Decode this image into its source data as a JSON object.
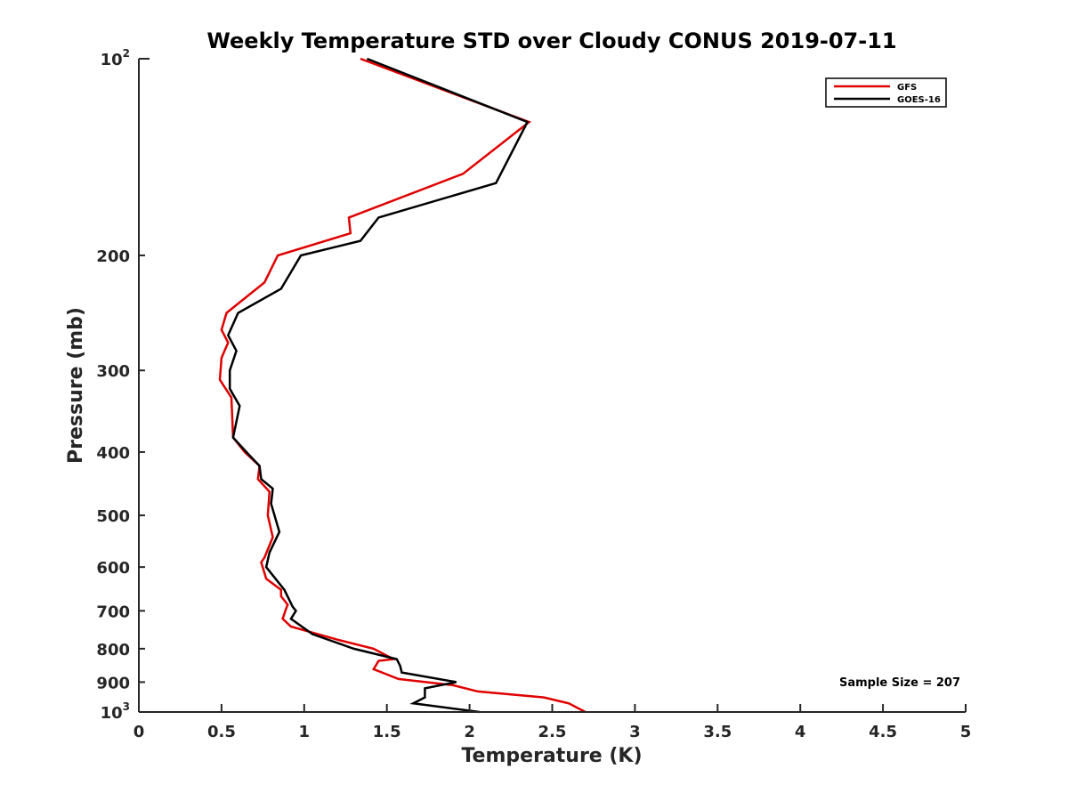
{
  "chart_data": {
    "type": "line",
    "title": "Weekly Temperature STD over Cloudy CONUS 2019-07-11",
    "xlabel": "Temperature (K)",
    "ylabel": "Pressure (mb)",
    "xlim": [
      0,
      5
    ],
    "ylim": [
      100,
      1000
    ],
    "yscale": "log",
    "y_reversed": true,
    "x_ticks": [
      0,
      0.5,
      1,
      1.5,
      2,
      2.5,
      3,
      3.5,
      4,
      4.5,
      5
    ],
    "x_tick_labels": [
      "0",
      "0.5",
      "1",
      "1.5",
      "2",
      "2.5",
      "3",
      "3.5",
      "4",
      "4.5",
      "5"
    ],
    "y_ticks": [
      100,
      200,
      300,
      400,
      500,
      600,
      700,
      800,
      900,
      1000
    ],
    "y_tick_labels": [
      {
        "base": "10",
        "exp": "2"
      },
      {
        "base": "200",
        "exp": ""
      },
      {
        "base": "300",
        "exp": ""
      },
      {
        "base": "400",
        "exp": ""
      },
      {
        "base": "500",
        "exp": ""
      },
      {
        "base": "600",
        "exp": ""
      },
      {
        "base": "700",
        "exp": ""
      },
      {
        "base": "800",
        "exp": ""
      },
      {
        "base": "900",
        "exp": ""
      },
      {
        "base": "10",
        "exp": "3"
      }
    ],
    "legend_position": "top-right",
    "annotation": "Sample Size = 207",
    "series": [
      {
        "name": "GFS",
        "color": "#e00000",
        "points": [
          [
            1.34,
            100
          ],
          [
            2.36,
            125
          ],
          [
            1.96,
            150
          ],
          [
            1.27,
            175
          ],
          [
            1.28,
            185
          ],
          [
            0.84,
            200
          ],
          [
            0.76,
            220
          ],
          [
            0.53,
            245
          ],
          [
            0.5,
            260
          ],
          [
            0.54,
            272
          ],
          [
            0.5,
            287
          ],
          [
            0.49,
            310
          ],
          [
            0.56,
            330
          ],
          [
            0.57,
            380
          ],
          [
            0.64,
            400
          ],
          [
            0.73,
            420
          ],
          [
            0.72,
            440
          ],
          [
            0.79,
            460
          ],
          [
            0.78,
            500
          ],
          [
            0.81,
            540
          ],
          [
            0.76,
            580
          ],
          [
            0.74,
            590
          ],
          [
            0.77,
            625
          ],
          [
            0.86,
            650
          ],
          [
            0.86,
            665
          ],
          [
            0.9,
            685
          ],
          [
            0.89,
            695
          ],
          [
            0.87,
            720
          ],
          [
            0.92,
            740
          ],
          [
            1.2,
            775
          ],
          [
            1.42,
            800
          ],
          [
            1.54,
            830
          ],
          [
            1.45,
            835
          ],
          [
            1.42,
            860
          ],
          [
            1.57,
            890
          ],
          [
            1.9,
            910
          ],
          [
            2.05,
            930
          ],
          [
            2.45,
            950
          ],
          [
            2.6,
            970
          ],
          [
            2.7,
            1000
          ]
        ]
      },
      {
        "name": "GOES-16",
        "color": "#000000",
        "points": [
          [
            1.38,
            100
          ],
          [
            2.35,
            125
          ],
          [
            2.16,
            155
          ],
          [
            1.45,
            175
          ],
          [
            1.34,
            190
          ],
          [
            0.98,
            200
          ],
          [
            0.86,
            225
          ],
          [
            0.6,
            245
          ],
          [
            0.54,
            265
          ],
          [
            0.59,
            280
          ],
          [
            0.55,
            300
          ],
          [
            0.55,
            320
          ],
          [
            0.61,
            340
          ],
          [
            0.57,
            380
          ],
          [
            0.65,
            400
          ],
          [
            0.73,
            420
          ],
          [
            0.74,
            440
          ],
          [
            0.81,
            455
          ],
          [
            0.8,
            480
          ],
          [
            0.85,
            530
          ],
          [
            0.79,
            570
          ],
          [
            0.77,
            600
          ],
          [
            0.88,
            650
          ],
          [
            0.93,
            690
          ],
          [
            0.95,
            700
          ],
          [
            0.92,
            720
          ],
          [
            1.05,
            760
          ],
          [
            1.3,
            800
          ],
          [
            1.56,
            830
          ],
          [
            1.58,
            850
          ],
          [
            1.59,
            870
          ],
          [
            1.92,
            900
          ],
          [
            1.73,
            920
          ],
          [
            1.73,
            950
          ],
          [
            1.66,
            970
          ],
          [
            2.06,
            1000
          ]
        ]
      }
    ]
  }
}
